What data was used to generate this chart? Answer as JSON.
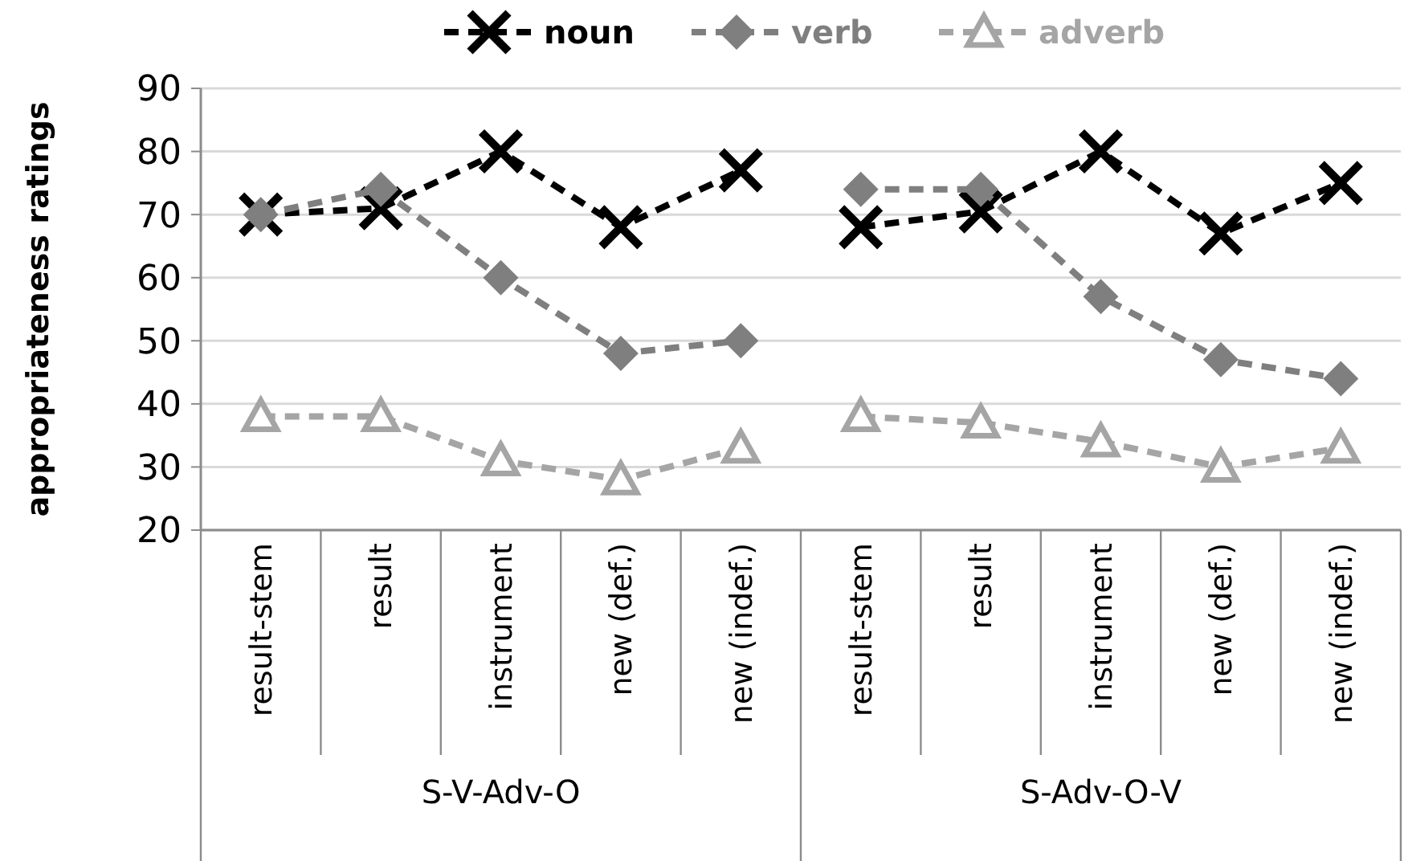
{
  "chart_data": {
    "type": "line",
    "ylabel": "appropriateness ratings",
    "categories": [
      "result-stem",
      "result",
      "instrument",
      "new (def.)",
      "new (indef.)",
      "result-stem",
      "result",
      "instrument",
      "new (def.)",
      "new (indef.)"
    ],
    "series": [
      {
        "name": "noun",
        "color": "#000000",
        "marker": "cross",
        "values": [
          70,
          71,
          80,
          68,
          77,
          68,
          70.5,
          80,
          67,
          75
        ]
      },
      {
        "name": "verb",
        "color": "#7f7f7f",
        "marker": "diamond",
        "values": [
          70,
          74,
          60,
          48,
          50,
          74,
          74,
          57,
          47,
          44
        ]
      },
      {
        "name": "adverb",
        "color": "#a5a5a5",
        "marker": "triangle",
        "values": [
          38,
          38,
          31,
          28,
          33,
          38,
          37,
          34,
          30,
          33
        ]
      }
    ],
    "annotations": [
      "S-V-Adv-O",
      "S-Adv-O-V"
    ],
    "ylim": [
      20,
      90
    ],
    "yticks": [
      20,
      30,
      40,
      50,
      60,
      70,
      80,
      90
    ],
    "grid": "y",
    "legend": "top",
    "line_style": "dashed"
  }
}
